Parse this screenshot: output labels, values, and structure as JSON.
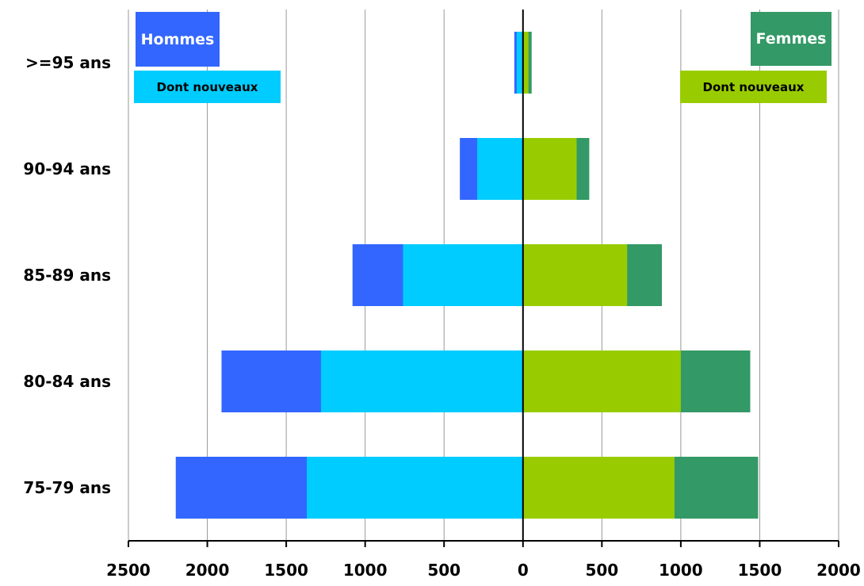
{
  "chart_data": {
    "type": "bar",
    "orientation": "horizontal",
    "subtype": "population-pyramid",
    "categories": [
      ">=95 ans",
      "90-94 ans",
      "85-89 ans",
      "80-84 ans",
      "75-79 ans"
    ],
    "series": [
      {
        "name": "Hommes",
        "side": "left",
        "values": [
          55,
          400,
          1080,
          1910,
          2200
        ],
        "color": "#3366ff"
      },
      {
        "name": "Dont nouveaux",
        "side": "left",
        "values": [
          40,
          290,
          760,
          1280,
          1370
        ],
        "color": "#00ccff"
      },
      {
        "name": "Femmes",
        "side": "right",
        "values": [
          55,
          420,
          880,
          1440,
          1490
        ],
        "color": "#339966"
      },
      {
        "name": "Dont nouveaux",
        "side": "right",
        "values": [
          35,
          340,
          660,
          1000,
          960
        ],
        "color": "#99cc00"
      }
    ],
    "xlim": [
      -2500,
      2000
    ],
    "xticks": [
      -2500,
      -2000,
      -1500,
      -1000,
      -500,
      0,
      500,
      1000,
      1500,
      2000
    ],
    "xtick_labels": [
      "2500",
      "2000",
      "1500",
      "1000",
      "500",
      "0",
      "500",
      "1000",
      "1500",
      "2000"
    ],
    "grid": "vertical",
    "title": "",
    "xlabel": "",
    "ylabel": ""
  },
  "legend": {
    "hommes": {
      "label": "Hommes",
      "color": "#3366ff"
    },
    "hommes_nouveaux": {
      "label": "Dont nouveaux",
      "color": "#00ccff"
    },
    "femmes": {
      "label": "Femmes",
      "color": "#339966"
    },
    "femmes_nouveaux": {
      "label": "Dont nouveaux",
      "color": "#99cc00"
    }
  }
}
